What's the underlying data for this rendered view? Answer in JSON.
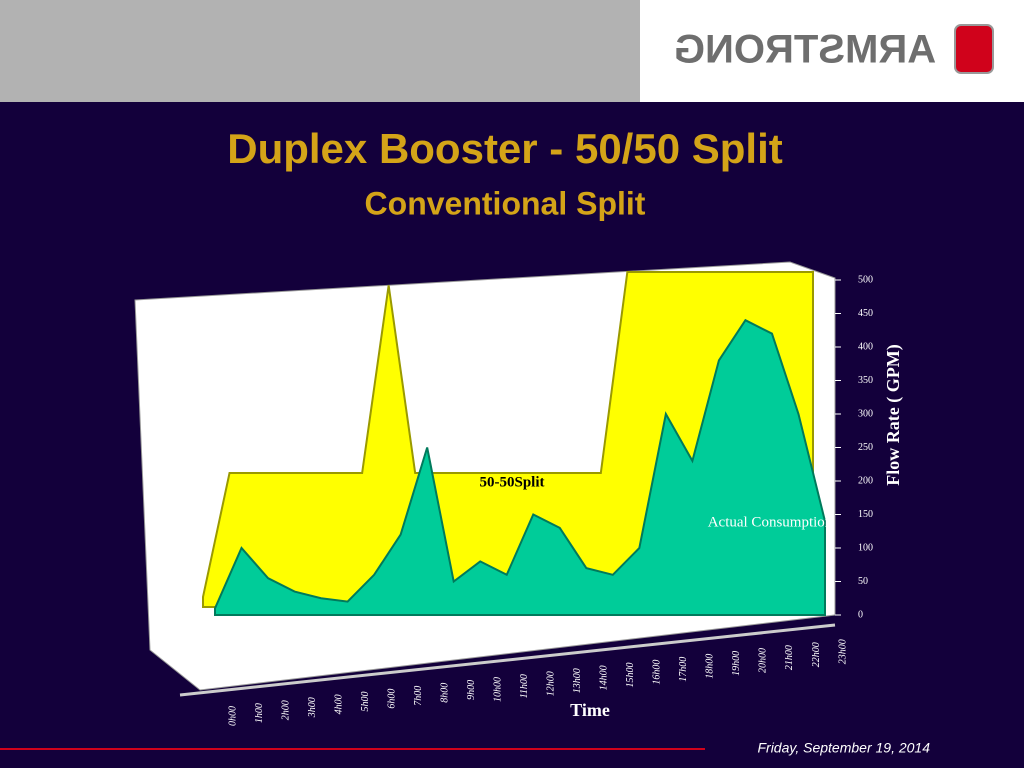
{
  "logo": "ARMSTRONG",
  "footer": {
    "date": "Friday, September 19, 2014"
  },
  "chart_data": {
    "type": "area",
    "title": "Duplex Booster - 50/50 Split",
    "subtitle": "Conventional Split",
    "x_label": "Time",
    "y_label": "Flow Rate ( GPM)",
    "categories": [
      "0h00",
      "1h00",
      "2h00",
      "3h00",
      "4h00",
      "5h00",
      "6h00",
      "7h00",
      "8h00",
      "9h00",
      "10h00",
      "11h00",
      "12h00",
      "13h00",
      "14h00",
      "15h00",
      "16h00",
      "17h00",
      "18h00",
      "19h00",
      "20h00",
      "21h00",
      "22h00",
      "23h00"
    ],
    "series": [
      {
        "name": "50-50Split",
        "color": "#ffff00",
        "values": [
          15,
          200,
          200,
          200,
          200,
          200,
          200,
          480,
          200,
          200,
          200,
          200,
          200,
          200,
          200,
          200,
          500,
          500,
          500,
          500,
          500,
          500,
          500,
          500
        ]
      },
      {
        "name": "Actual Consumption",
        "color": "#00cc99",
        "values": [
          10,
          100,
          55,
          35,
          25,
          20,
          60,
          120,
          250,
          50,
          80,
          60,
          150,
          130,
          70,
          60,
          100,
          300,
          230,
          380,
          440,
          420,
          300,
          140
        ]
      }
    ],
    "ylim": [
      0,
      500
    ],
    "yticks": [
      0,
      50,
      100,
      150,
      200,
      250,
      300,
      350,
      400,
      450,
      500
    ]
  }
}
